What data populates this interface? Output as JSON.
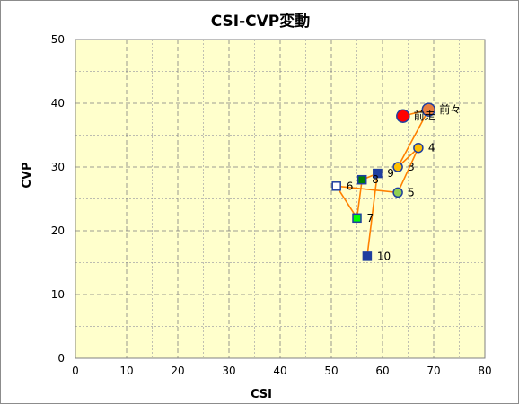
{
  "chart_data": {
    "type": "scatter",
    "title": "CSI-CVP変動",
    "xlabel": "CSI",
    "ylabel": "CVP",
    "xlim": [
      0,
      80
    ],
    "ylim": [
      0,
      50
    ],
    "xticks": [
      0,
      10,
      20,
      30,
      40,
      50,
      60,
      70,
      80
    ],
    "yticks": [
      0,
      10,
      20,
      30,
      40,
      50
    ],
    "grid": true,
    "plot_background": "#ffffcc",
    "line_color": "#ff8000",
    "path_order": [
      "10",
      "9",
      "8",
      "7",
      "6",
      "5",
      "4",
      "3",
      "前々",
      "前走"
    ],
    "points": [
      {
        "label": "前々",
        "x": 69,
        "y": 39,
        "shape": "circle",
        "fill": "#e87d3e",
        "stroke": "#1f3f9f",
        "size": "large"
      },
      {
        "label": "前走",
        "x": 64,
        "y": 38,
        "shape": "circle",
        "fill": "#ff0000",
        "stroke": "#1f3f9f",
        "size": "large"
      },
      {
        "label": "4",
        "x": 67,
        "y": 33,
        "shape": "circle",
        "fill": "#ffc000",
        "stroke": "#1f3f9f",
        "size": "small"
      },
      {
        "label": "3",
        "x": 63,
        "y": 30,
        "shape": "circle",
        "fill": "#ffc000",
        "stroke": "#1f3f9f",
        "size": "small"
      },
      {
        "label": "5",
        "x": 63,
        "y": 26,
        "shape": "circle",
        "fill": "#92d050",
        "stroke": "#1f3f9f",
        "size": "small"
      },
      {
        "label": "6",
        "x": 51,
        "y": 27,
        "shape": "square",
        "fill": "#ffffff",
        "stroke": "#1f3f9f",
        "size": "small"
      },
      {
        "label": "7",
        "x": 55,
        "y": 22,
        "shape": "square",
        "fill": "#00ff00",
        "stroke": "#1f3f9f",
        "size": "small"
      },
      {
        "label": "8",
        "x": 56,
        "y": 28,
        "shape": "square",
        "fill": "#008000",
        "stroke": "#1f3f9f",
        "size": "small"
      },
      {
        "label": "9",
        "x": 59,
        "y": 29,
        "shape": "square",
        "fill": "#1f3f9f",
        "stroke": "#1f3f9f",
        "size": "small"
      },
      {
        "label": "10",
        "x": 57,
        "y": 16,
        "shape": "square",
        "fill": "#1f3f9f",
        "stroke": "#1f3f9f",
        "size": "small"
      }
    ]
  }
}
